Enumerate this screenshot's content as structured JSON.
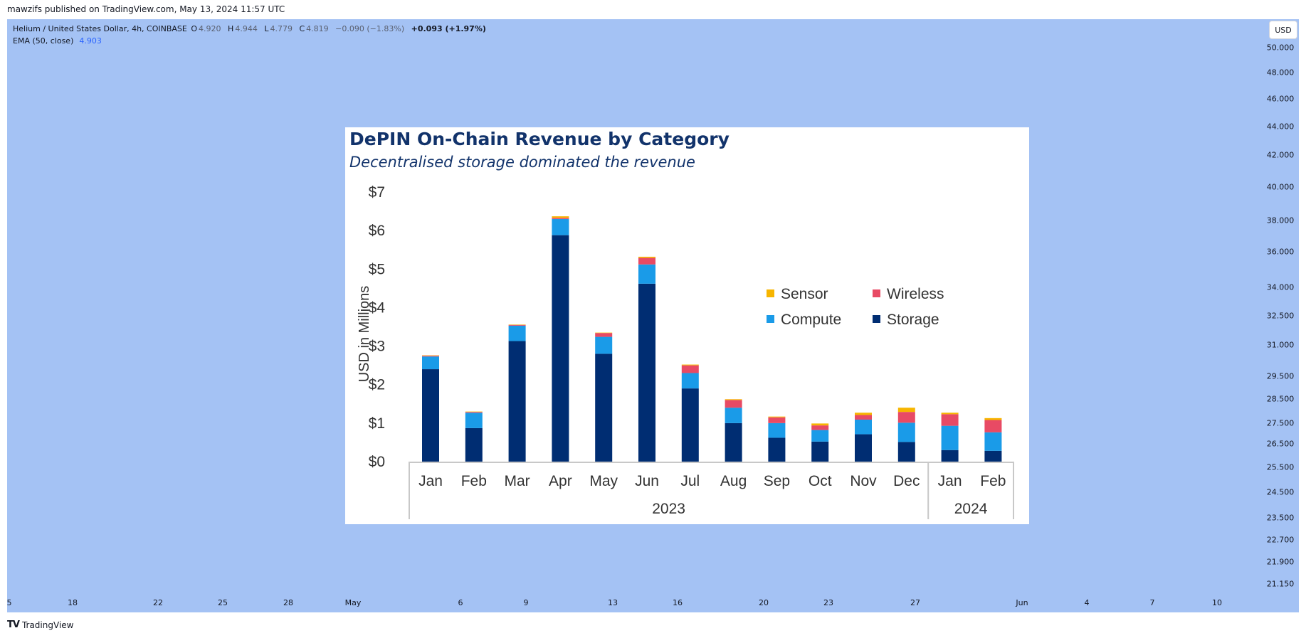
{
  "publish_line": "mawzifs published on TradingView.com, May 13, 2024 11:57 UTC",
  "symbol_legend": {
    "symbol": "Helium / United States Dollar, 4h, COINBASE",
    "open_label": "O",
    "open": "4.920",
    "high_label": "H",
    "high": "4.944",
    "low_label": "L",
    "low": "4.779",
    "close_label": "C",
    "close": "4.819",
    "change": "−0.090 (−1.83%)",
    "change2": "+0.093 (+1.97%)"
  },
  "indicator": {
    "name": "EMA (50, close)",
    "value": "4.903"
  },
  "currency_button": "USD",
  "price_axis": [
    "50.000",
    "48.000",
    "46.000",
    "44.000",
    "42.000",
    "40.000",
    "38.000",
    "36.000",
    "34.000",
    "32.500",
    "31.000",
    "29.500",
    "28.500",
    "27.500",
    "26.500",
    "25.500",
    "24.500",
    "23.500",
    "22.700",
    "21.900",
    "21.150"
  ],
  "time_axis": [
    "5",
    "18",
    "22",
    "25",
    "28",
    "May",
    "6",
    "9",
    "13",
    "16",
    "20",
    "23",
    "27",
    "Jun",
    "4",
    "7",
    "10"
  ],
  "footer_brand": "TradingView",
  "footer_icon": "tradingview-logo-icon",
  "colors": {
    "plot_bg": "#a4c2f4",
    "storage": "#002d72",
    "compute": "#1a9be8",
    "wireless": "#e84a64",
    "sensor": "#f7b500",
    "title": "#12336b"
  },
  "chart_data": {
    "type": "bar",
    "stacked": true,
    "title": "DePIN On-Chain Revenue by Category",
    "subtitle": "Decentralised storage dominated the revenue",
    "xlabel": "",
    "ylabel": "USD in Millions",
    "ylim": [
      0,
      7
    ],
    "yticks": [
      "$0",
      "$1",
      "$2",
      "$3",
      "$4",
      "$5",
      "$6",
      "$7"
    ],
    "categories": [
      "Jan",
      "Feb",
      "Mar",
      "Apr",
      "May",
      "Jun",
      "Jul",
      "Aug",
      "Sep",
      "Oct",
      "Nov",
      "Dec",
      "Jan",
      "Feb"
    ],
    "groups": [
      {
        "label": "2023",
        "count": 12
      },
      {
        "label": "2024",
        "count": 2
      }
    ],
    "series": [
      {
        "name": "Storage",
        "values": [
          2.4,
          0.87,
          3.13,
          5.88,
          2.8,
          4.62,
          1.9,
          1.0,
          0.62,
          0.52,
          0.71,
          0.51,
          0.3,
          0.28
        ]
      },
      {
        "name": "Compute",
        "values": [
          0.33,
          0.4,
          0.4,
          0.42,
          0.44,
          0.5,
          0.4,
          0.4,
          0.38,
          0.3,
          0.38,
          0.5,
          0.63,
          0.48
        ]
      },
      {
        "name": "Wireless",
        "values": [
          0.02,
          0.02,
          0.02,
          0.03,
          0.1,
          0.17,
          0.2,
          0.2,
          0.15,
          0.12,
          0.12,
          0.28,
          0.3,
          0.32
        ]
      },
      {
        "name": "Sensor",
        "values": [
          0.01,
          0.01,
          0.01,
          0.04,
          0.01,
          0.03,
          0.02,
          0.02,
          0.02,
          0.05,
          0.06,
          0.11,
          0.04,
          0.05
        ]
      }
    ],
    "legend": [
      "Sensor",
      "Wireless",
      "Compute",
      "Storage"
    ],
    "legend_position": "right-center"
  }
}
